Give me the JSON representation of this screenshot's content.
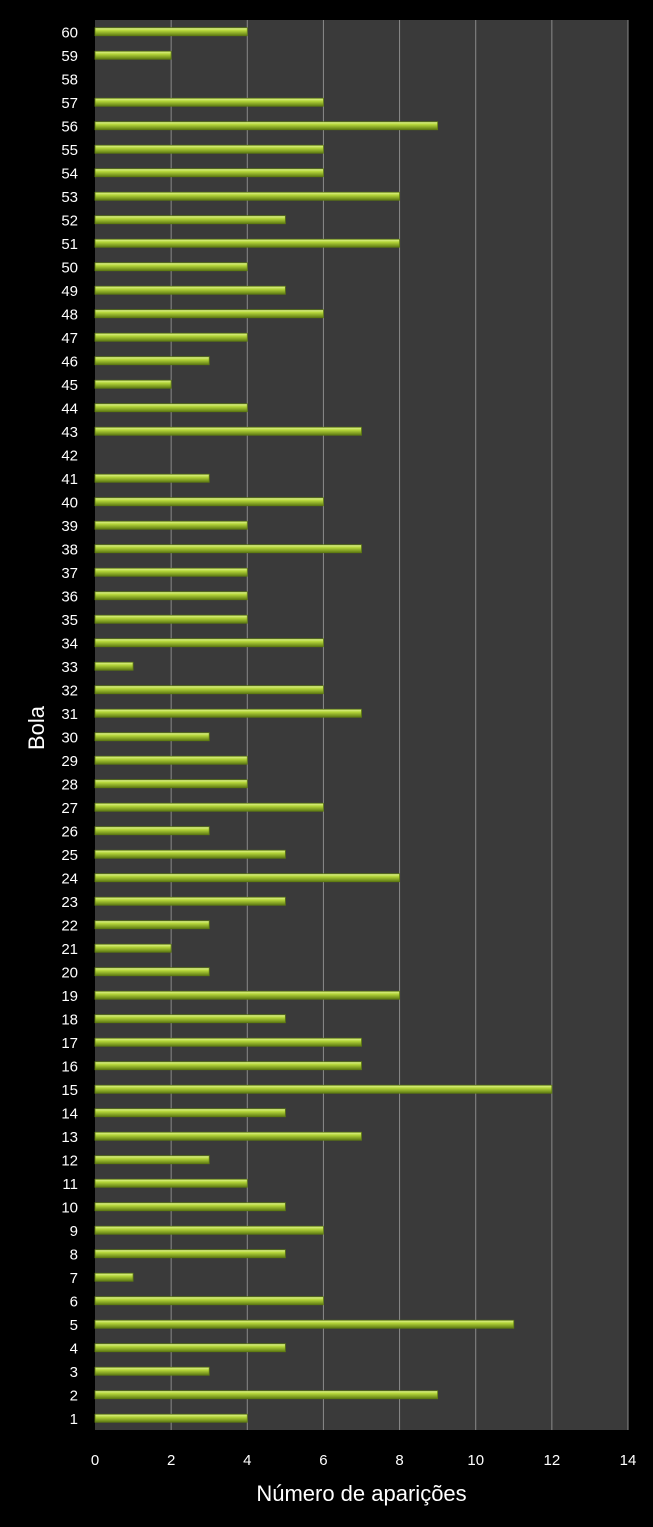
{
  "chart_data": {
    "type": "bar",
    "orientation": "horizontal",
    "title": "",
    "xlabel": "Número de aparições",
    "ylabel": "Bola",
    "xlim": [
      0,
      14
    ],
    "x_ticks": [
      "0",
      "2",
      "4",
      "6",
      "8",
      "10",
      "12",
      "14"
    ],
    "grid": "vertical",
    "categories": [
      "1",
      "2",
      "3",
      "4",
      "5",
      "6",
      "7",
      "8",
      "9",
      "10",
      "11",
      "12",
      "13",
      "14",
      "15",
      "16",
      "17",
      "18",
      "19",
      "20",
      "21",
      "22",
      "23",
      "24",
      "25",
      "26",
      "27",
      "28",
      "29",
      "30",
      "31",
      "32",
      "33",
      "34",
      "35",
      "36",
      "37",
      "38",
      "39",
      "40",
      "41",
      "42",
      "43",
      "44",
      "45",
      "46",
      "47",
      "48",
      "49",
      "50",
      "51",
      "52",
      "53",
      "54",
      "55",
      "56",
      "57",
      "58",
      "59",
      "60"
    ],
    "values": [
      4,
      9,
      3,
      5,
      11,
      6,
      1,
      5,
      6,
      5,
      4,
      3,
      7,
      5,
      12,
      7,
      7,
      5,
      8,
      3,
      2,
      3,
      5,
      8,
      5,
      3,
      6,
      4,
      4,
      3,
      7,
      6,
      1,
      6,
      4,
      4,
      4,
      7,
      4,
      6,
      3,
      0,
      7,
      4,
      2,
      3,
      4,
      6,
      5,
      4,
      8,
      5,
      8,
      6,
      6,
      9,
      6,
      0,
      2,
      4
    ],
    "colors": {
      "background": "#000000",
      "plot_area": "#3a3a3a",
      "gridline": "#8a8a8a",
      "bar": "#b5d63a",
      "bar_highlight": "#e4f59a",
      "bar_shadow": "#5e7a12",
      "text": "#ffffff"
    }
  }
}
